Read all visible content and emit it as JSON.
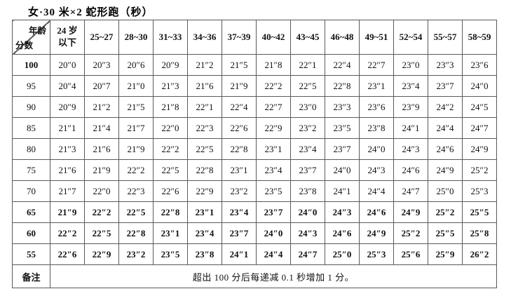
{
  "title": "女·30 米×2 蛇形跑（秒）",
  "table": {
    "corner_top": "年龄",
    "corner_bottom": "分数",
    "age_headers": [
      "24 岁\n以下",
      "25~27",
      "28~30",
      "31~33",
      "34~36",
      "37~39",
      "40~42",
      "43~45",
      "46~48",
      "49~51",
      "52~54",
      "55~57",
      "58~59"
    ],
    "rows": [
      {
        "score": "100",
        "score_bold": true,
        "bold": false,
        "values": [
          "20″0",
          "20″3",
          "20″6",
          "20″9",
          "21″2",
          "21″5",
          "21″8",
          "22″1",
          "22″4",
          "22″7",
          "23″0",
          "23″3",
          "23″6"
        ]
      },
      {
        "score": "95",
        "score_bold": false,
        "bold": false,
        "values": [
          "20″4",
          "20″7",
          "21″0",
          "21″3",
          "21″6",
          "21″9",
          "22″2",
          "22″5",
          "22″8",
          "23″1",
          "23″4",
          "23″7",
          "24″0"
        ]
      },
      {
        "score": "90",
        "score_bold": false,
        "bold": false,
        "values": [
          "20″9",
          "21″2",
          "21″5",
          "21″8",
          "22″1",
          "22″4",
          "22″7",
          "23″0",
          "23″3",
          "23″6",
          "23″9",
          "24″2",
          "24″5"
        ]
      },
      {
        "score": "85",
        "score_bold": false,
        "bold": false,
        "values": [
          "21″1",
          "21″4",
          "21″7",
          "22″0",
          "22″3",
          "22″6",
          "22″9",
          "23″2",
          "23″5",
          "23″8",
          "24″1",
          "24″4",
          "24″7"
        ]
      },
      {
        "score": "80",
        "score_bold": false,
        "bold": false,
        "values": [
          "21″3",
          "21″6",
          "21″9",
          "22″2",
          "22″5",
          "22″8",
          "23″1",
          "23″4",
          "23″7",
          "24″0",
          "24″3",
          "24″6",
          "24″9"
        ]
      },
      {
        "score": "75",
        "score_bold": false,
        "bold": false,
        "values": [
          "21″6",
          "21″9",
          "22″2",
          "22″5",
          "22″8",
          "23″1",
          "23″4",
          "23″7",
          "24″0",
          "24″3",
          "24″6",
          "24″9",
          "25″2"
        ]
      },
      {
        "score": "70",
        "score_bold": false,
        "bold": false,
        "values": [
          "21″7",
          "22″0",
          "22″3",
          "22″6",
          "22″9",
          "23″2",
          "23″5",
          "23″8",
          "24″1",
          "24″4",
          "24″7",
          "25″0",
          "25″3"
        ]
      },
      {
        "score": "65",
        "score_bold": true,
        "bold": true,
        "values": [
          "21″9",
          "22″2",
          "22″5",
          "22″8",
          "23″1",
          "23″4",
          "23″7",
          "24″0",
          "24″3",
          "24″6",
          "24″9",
          "25″2",
          "25″5"
        ]
      },
      {
        "score": "60",
        "score_bold": true,
        "bold": true,
        "values": [
          "22″2",
          "22″5",
          "22″8",
          "23″1",
          "23″4",
          "23″7",
          "24″0",
          "24″3",
          "24″6",
          "24″9",
          "25″2",
          "25″5",
          "25″8"
        ]
      },
      {
        "score": "55",
        "score_bold": true,
        "bold": true,
        "values": [
          "22″6",
          "22″9",
          "23″2",
          "23″5",
          "23″8",
          "24″1",
          "24″4",
          "24″7",
          "25″0",
          "25″3",
          "25″6",
          "25″9",
          "26″2"
        ]
      }
    ],
    "remark_label": "备注",
    "remark_text": "超出 100 分后每递减 0.1 秒增加 1 分。"
  },
  "colors": {
    "border": "#5a5a5a",
    "text": "#111111",
    "background": "#ffffff"
  }
}
